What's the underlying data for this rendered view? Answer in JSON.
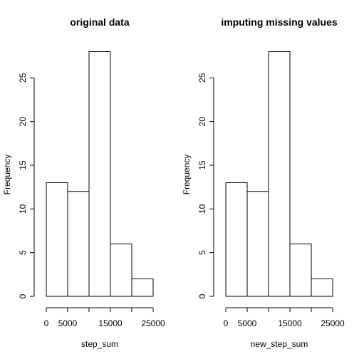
{
  "chart_data": [
    {
      "type": "bar",
      "title": "original data",
      "xlabel": "step_sum",
      "ylabel": "Frequency",
      "bins": [
        [
          0,
          5000
        ],
        [
          5000,
          10000
        ],
        [
          10000,
          15000
        ],
        [
          15000,
          20000
        ],
        [
          20000,
          25000
        ]
      ],
      "values": [
        13,
        12,
        28,
        6,
        2
      ],
      "xlim": [
        0,
        25000
      ],
      "ylim": [
        0,
        28
      ],
      "x_ticks": [
        0,
        5000,
        10000,
        15000,
        20000,
        25000
      ],
      "x_tick_labels": [
        "0",
        "5000",
        "",
        "15000",
        "",
        "25000"
      ],
      "y_ticks": [
        0,
        5,
        10,
        15,
        20,
        25
      ],
      "y_tick_labels": [
        "0",
        "5",
        "10",
        "15",
        "20",
        "25"
      ],
      "grid": false
    },
    {
      "type": "bar",
      "title": "imputing missing values",
      "xlabel": "new_step_sum",
      "ylabel": "Frequency",
      "bins": [
        [
          0,
          5000
        ],
        [
          5000,
          10000
        ],
        [
          10000,
          15000
        ],
        [
          15000,
          20000
        ],
        [
          20000,
          25000
        ]
      ],
      "values": [
        13,
        12,
        28,
        6,
        2
      ],
      "xlim": [
        0,
        25000
      ],
      "ylim": [
        0,
        28
      ],
      "x_ticks": [
        0,
        5000,
        10000,
        15000,
        20000,
        25000
      ],
      "x_tick_labels": [
        "0",
        "5000",
        "",
        "15000",
        "",
        "25000"
      ],
      "y_ticks": [
        0,
        5,
        10,
        15,
        20,
        25
      ],
      "y_tick_labels": [
        "0",
        "5",
        "10",
        "15",
        "20",
        "25"
      ],
      "grid": false
    }
  ]
}
